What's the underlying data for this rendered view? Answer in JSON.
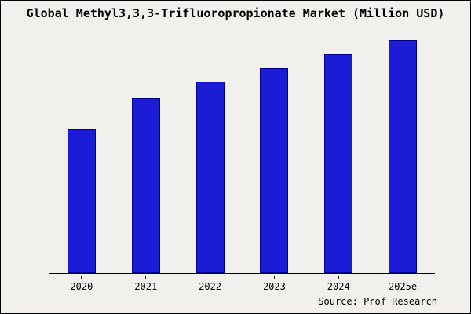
{
  "title": "Global Methyl3,3,3-Trifluoropropionate Market (Million USD)",
  "source": "Source: Prof Research",
  "colors": {
    "background": "#f1f0ec",
    "bar_fill": "#1c1cd6",
    "bar_border": "#00008b",
    "axis": "#000000",
    "text": "#000000"
  },
  "chart_data": {
    "type": "bar",
    "title": "Global Methyl3,3,3-Trifluoropropionate Market (Million USD)",
    "categories": [
      "2020",
      "2021",
      "2022",
      "2023",
      "2024",
      "2025e"
    ],
    "values": [
      62,
      75,
      82,
      88,
      94,
      100
    ],
    "xlabel": "",
    "ylabel": "",
    "ylim": [
      0,
      100
    ],
    "grid": false,
    "legend_position": "none",
    "value_note": "no y-axis shown; values estimated relative to 2025e = 100"
  }
}
